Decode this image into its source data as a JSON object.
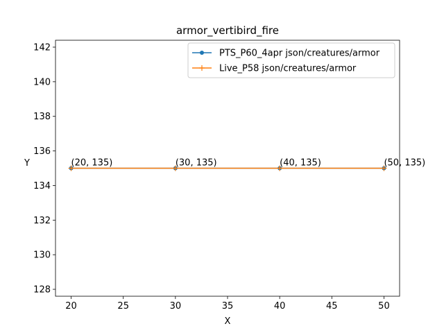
{
  "chart_data": {
    "type": "line",
    "title": "armor_vertibird_fire",
    "xlabel": "X",
    "ylabel": "Y",
    "xlim": [
      18.5,
      51.5
    ],
    "ylim": [
      127.6,
      142.4
    ],
    "xticks": [
      20,
      25,
      30,
      35,
      40,
      45,
      50
    ],
    "yticks": [
      128,
      130,
      132,
      134,
      136,
      138,
      140,
      142
    ],
    "grid": false,
    "legend_position": "top-right",
    "series": [
      {
        "name": "PTS_P60_4apr json/creatures/armor",
        "color": "#1f77b4",
        "marker": "star",
        "x": [
          20,
          30,
          40,
          50
        ],
        "y": [
          135,
          135,
          135,
          135
        ]
      },
      {
        "name": "Live_P58 json/creatures/armor",
        "color": "#ff7f0e",
        "marker": "plus",
        "x": [
          20,
          30,
          40,
          50
        ],
        "y": [
          135,
          135,
          135,
          135
        ]
      }
    ],
    "annotations": [
      "(20, 135)",
      "(30, 135)",
      "(40, 135)",
      "(50, 135)"
    ]
  }
}
